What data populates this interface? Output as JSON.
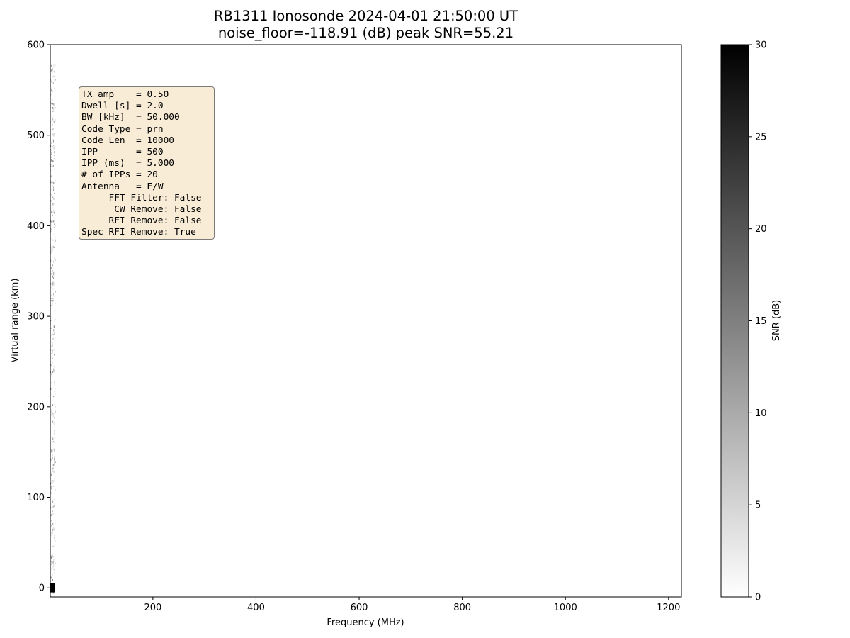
{
  "chart_data": {
    "type": "heatmap",
    "title": "RB1311 Ionosonde 2024-04-01 21:50:00  UT",
    "subtitle": "noise_floor=-118.91 (dB) peak SNR=55.21",
    "xlabel": "Frequency (MHz)",
    "ylabel": "Virtual range (km)",
    "colorbar_label": "SNR (dB)",
    "xlim": [
      1,
      1225
    ],
    "ylim": [
      -10,
      600
    ],
    "x_ticks": [
      200,
      400,
      600,
      800,
      1000,
      1200
    ],
    "y_ticks": [
      0,
      100,
      200,
      300,
      400,
      500,
      600
    ],
    "colorbar_range": [
      0,
      30
    ],
    "colorbar_ticks": [
      0,
      5,
      10,
      15,
      20,
      25,
      30
    ],
    "colormap": [
      "#ffffff",
      "#000000"
    ],
    "grid": false,
    "info_box": {
      "position": "top-left",
      "background": "#f8ecd6",
      "lines": [
        "TX amp    = 0.50",
        "Dwell [s] = 2.0",
        "BW [kHz]  = 50.000",
        "Code Type = prn",
        "Code Len  = 10000",
        "IPP       = 500",
        "IPP (ms)  = 5.000",
        "# of IPPs = 20",
        "Antenna   = E/W",
        "     FFT Filter: False",
        "      CW Remove: False",
        "     RFI Remove: False",
        "Spec RFI Remove: True"
      ]
    },
    "data_regions": [
      {
        "freq_mhz": [
          1,
          10
        ],
        "range_km": [
          -10,
          580
        ],
        "snr_db": 8,
        "description_level": "sparse speckle"
      },
      {
        "freq_mhz": [
          1,
          10
        ],
        "range_km": [
          -5,
          5
        ],
        "snr_db": 30,
        "description_level": "strong"
      }
    ]
  }
}
